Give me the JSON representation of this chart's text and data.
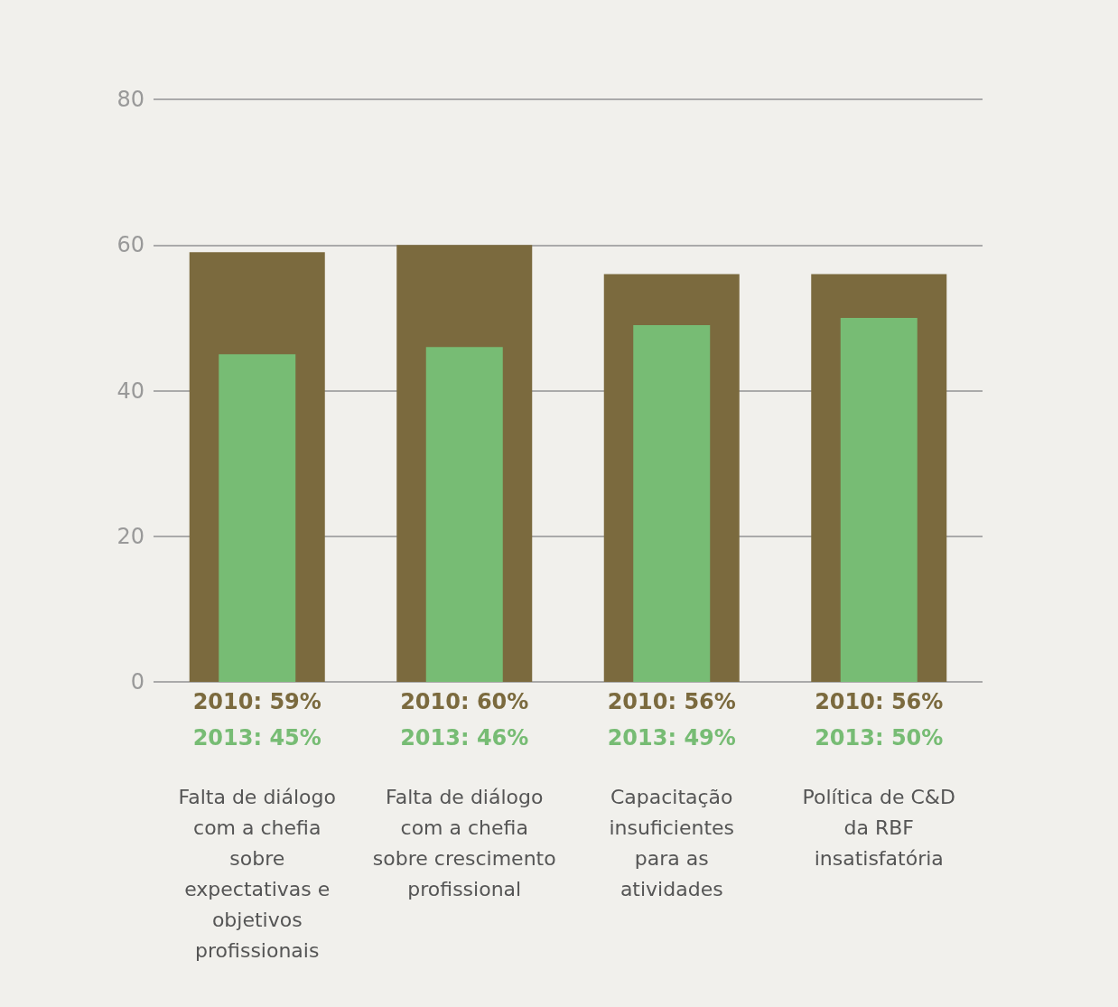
{
  "chart_data": {
    "type": "bar",
    "categories": [
      "Falta de diálogo com a chefia sobre expectativas e objetivos profissionais",
      "Falta de diálogo com a chefia sobre crescimento profissional",
      "Capacitação insuficientes para as atividades",
      "Política de C&D da RBF insatisfatória"
    ],
    "series": [
      {
        "color": "#7b6a3e",
        "values": [
          59,
          60,
          56,
          56
        ],
        "value_labels": [
          "2010: 59%",
          "2010: 60%",
          "2010: 56%",
          "2010: 56%"
        ]
      },
      {
        "color": "#77bc74",
        "values": [
          45,
          46,
          49,
          50
        ],
        "value_labels": [
          "2013: 45%",
          "2013: 46%",
          "2013: 49%",
          "2013: 50%"
        ]
      }
    ],
    "ylim": [
      0,
      80
    ],
    "yticks": [
      0,
      20,
      40,
      60,
      80
    ],
    "grid": "y"
  }
}
